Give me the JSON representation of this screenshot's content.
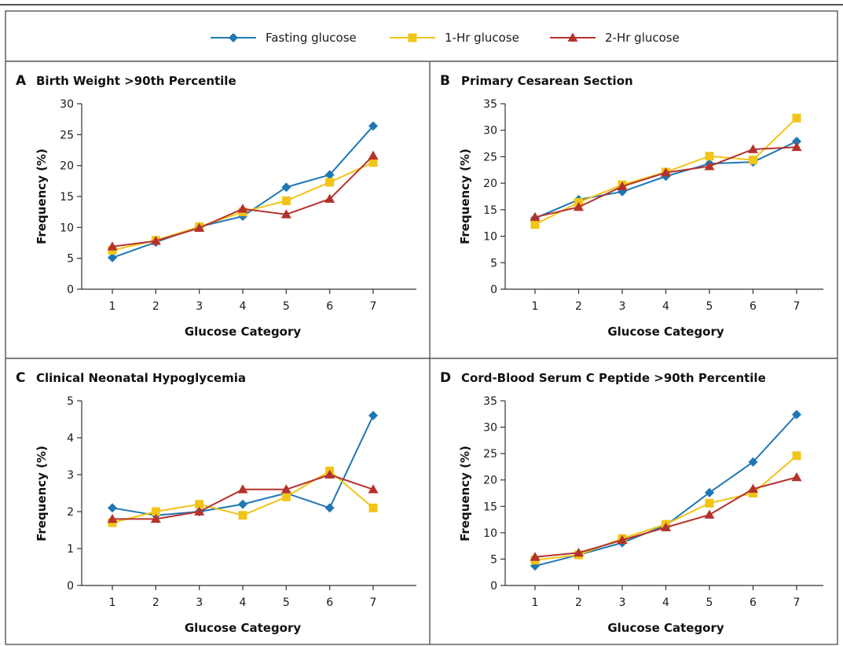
{
  "legend": [
    {
      "label": "Fasting glucose",
      "color": "#1f77b4",
      "marker": "diamond"
    },
    {
      "label": "1-Hr glucose",
      "color": "#f2c417",
      "marker": "square"
    },
    {
      "label": "2-Hr glucose",
      "color": "#b5322c",
      "marker": "triangle"
    }
  ],
  "chart_data": [
    {
      "type": "line",
      "panel": "A",
      "title": "Birth Weight >90th Percentile",
      "xlabel": "Glucose Category",
      "ylabel": "Frequency (%)",
      "x": [
        1,
        2,
        3,
        4,
        5,
        6,
        7
      ],
      "ylim": [
        0,
        30
      ],
      "yticks": [
        0,
        5,
        10,
        15,
        20,
        25,
        30
      ],
      "grid": false,
      "series": [
        {
          "name": "Fasting glucose",
          "values": [
            5.1,
            7.6,
            10.1,
            11.8,
            16.5,
            18.5,
            26.4
          ]
        },
        {
          "name": "1-Hr glucose",
          "values": [
            6.3,
            7.9,
            10.1,
            12.5,
            14.3,
            17.3,
            20.5
          ]
        },
        {
          "name": "2-Hr glucose",
          "values": [
            6.9,
            7.8,
            9.9,
            13.0,
            12.1,
            14.6,
            21.6
          ]
        }
      ]
    },
    {
      "type": "line",
      "panel": "B",
      "title": "Primary Cesarean Section",
      "xlabel": "Glucose Category",
      "ylabel": "Frequency (%)",
      "x": [
        1,
        2,
        3,
        4,
        5,
        6,
        7
      ],
      "ylim": [
        0,
        35
      ],
      "yticks": [
        0,
        5,
        10,
        15,
        20,
        25,
        30,
        35
      ],
      "grid": false,
      "series": [
        {
          "name": "Fasting glucose",
          "values": [
            13.4,
            16.9,
            18.4,
            21.3,
            23.7,
            24.0,
            27.9
          ]
        },
        {
          "name": "1-Hr glucose",
          "values": [
            12.2,
            16.4,
            19.7,
            22.1,
            25.1,
            24.4,
            32.3
          ]
        },
        {
          "name": "2-Hr glucose",
          "values": [
            13.6,
            15.5,
            19.4,
            22.0,
            23.2,
            26.4,
            26.8
          ]
        }
      ]
    },
    {
      "type": "line",
      "panel": "C",
      "title": "Clinical Neonatal Hypoglycemia",
      "xlabel": "Glucose Category",
      "ylabel": "Frequency (%)",
      "x": [
        1,
        2,
        3,
        4,
        5,
        6,
        7
      ],
      "ylim": [
        0,
        5
      ],
      "yticks": [
        0,
        1,
        2,
        3,
        4,
        5
      ],
      "grid": false,
      "series": [
        {
          "name": "Fasting glucose",
          "values": [
            2.1,
            1.9,
            2.0,
            2.2,
            2.5,
            2.1,
            4.6
          ]
        },
        {
          "name": "1-Hr glucose",
          "values": [
            1.7,
            2.0,
            2.2,
            1.9,
            2.4,
            3.1,
            2.1
          ]
        },
        {
          "name": "2-Hr glucose",
          "values": [
            1.8,
            1.8,
            2.0,
            2.6,
            2.6,
            3.0,
            2.6
          ]
        }
      ]
    },
    {
      "type": "line",
      "panel": "D",
      "title": "Cord-Blood Serum C Peptide >90th Percentile",
      "xlabel": "Glucose Category",
      "ylabel": "Frequency (%)",
      "x": [
        1,
        2,
        3,
        4,
        5,
        6,
        7
      ],
      "ylim": [
        0,
        35
      ],
      "yticks": [
        0,
        5,
        10,
        15,
        20,
        25,
        30,
        35
      ],
      "grid": false,
      "series": [
        {
          "name": "Fasting glucose",
          "values": [
            3.7,
            5.8,
            8.1,
            11.4,
            17.6,
            23.4,
            32.4
          ]
        },
        {
          "name": "1-Hr glucose",
          "values": [
            4.8,
            5.8,
            8.9,
            11.6,
            15.6,
            17.5,
            24.6
          ]
        },
        {
          "name": "2-Hr glucose",
          "values": [
            5.4,
            6.2,
            8.6,
            11.0,
            13.4,
            18.3,
            20.5
          ]
        }
      ]
    }
  ]
}
